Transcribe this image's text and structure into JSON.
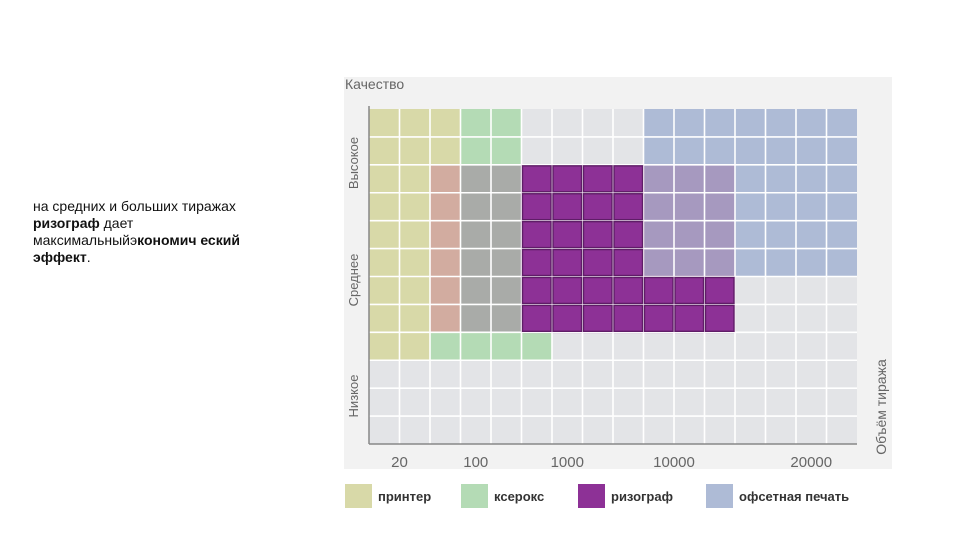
{
  "slide_text": {
    "part1": "на средних и больших тиражах ",
    "bold1": "ризограф",
    "part2": " дает максимальныйэ",
    "bold2": "кономич еский эффект",
    "part3": "."
  },
  "chart_data": {
    "type": "heatmap",
    "title": "Качество",
    "xlabel": "Объём тиража",
    "y_bands": [
      "Низкое",
      "Среднее",
      "Высокое"
    ],
    "x_ticks": [
      {
        "label": "20",
        "col": 1
      },
      {
        "label": "100",
        "col": 3.5
      },
      {
        "label": "1000",
        "col": 6.5
      },
      {
        "label": "10000",
        "col": 10
      },
      {
        "label": "20000",
        "col": 14.5
      }
    ],
    "grid": {
      "cols": 16,
      "rows": 12
    },
    "colors": {
      "grid_bg": "#e3e4e7",
      "grid_line": "#ffffff",
      "axis": "#888888",
      "printer": "#d8d9a8",
      "copier": "#b4dbb5",
      "riso": "#8d3196",
      "riso_border": "#5f1d67",
      "offset": "#aebbd6",
      "offset_dark": "#a699bf",
      "copier_gray": "#a9aba8",
      "blend": "#d2aca0"
    },
    "regions": [
      {
        "method": "printer",
        "color_key": "printer",
        "cells": [
          [
            0,
            0
          ],
          [
            0,
            1
          ],
          [
            0,
            2
          ],
          [
            0,
            3
          ],
          [
            0,
            4
          ],
          [
            0,
            5
          ],
          [
            0,
            6
          ],
          [
            0,
            7
          ],
          [
            0,
            8
          ],
          [
            1,
            0
          ],
          [
            1,
            1
          ],
          [
            1,
            2
          ],
          [
            1,
            3
          ],
          [
            1,
            4
          ],
          [
            1,
            5
          ],
          [
            1,
            6
          ],
          [
            1,
            7
          ],
          [
            1,
            8
          ],
          [
            2,
            0
          ],
          [
            2,
            1
          ]
        ]
      },
      {
        "method": "ксерокс",
        "color_key": "copier",
        "cells": [
          [
            2,
            8
          ],
          [
            3,
            0
          ],
          [
            3,
            1
          ],
          [
            3,
            8
          ],
          [
            4,
            0
          ],
          [
            4,
            1
          ],
          [
            4,
            8
          ],
          [
            5,
            8
          ]
        ]
      },
      {
        "method": "ксерокс",
        "color_key": "copier_gray",
        "cells": [
          [
            3,
            2
          ],
          [
            3,
            3
          ],
          [
            3,
            4
          ],
          [
            3,
            5
          ],
          [
            3,
            6
          ],
          [
            3,
            7
          ],
          [
            4,
            2
          ],
          [
            4,
            3
          ],
          [
            4,
            4
          ],
          [
            4,
            5
          ],
          [
            4,
            6
          ],
          [
            4,
            7
          ]
        ]
      },
      {
        "method": "blend",
        "color_key": "blend",
        "cells": [
          [
            2,
            2
          ],
          [
            2,
            3
          ],
          [
            2,
            4
          ],
          [
            2,
            5
          ],
          [
            2,
            6
          ],
          [
            2,
            7
          ]
        ]
      },
      {
        "method": "офсетная печать",
        "color_key": "offset",
        "cells": [
          [
            9,
            0
          ],
          [
            9,
            1
          ],
          [
            10,
            0
          ],
          [
            10,
            1
          ],
          [
            11,
            0
          ],
          [
            11,
            1
          ],
          [
            12,
            0
          ],
          [
            12,
            1
          ],
          [
            12,
            2
          ],
          [
            12,
            3
          ],
          [
            12,
            4
          ],
          [
            12,
            5
          ],
          [
            13,
            0
          ],
          [
            13,
            1
          ],
          [
            13,
            2
          ],
          [
            13,
            3
          ],
          [
            13,
            4
          ],
          [
            13,
            5
          ],
          [
            14,
            0
          ],
          [
            14,
            1
          ],
          [
            14,
            2
          ],
          [
            14,
            3
          ],
          [
            14,
            4
          ],
          [
            14,
            5
          ],
          [
            15,
            0
          ],
          [
            15,
            1
          ],
          [
            15,
            2
          ],
          [
            15,
            3
          ],
          [
            15,
            4
          ],
          [
            15,
            5
          ]
        ]
      },
      {
        "method": "офсетная печать",
        "color_key": "offset_dark",
        "cells": [
          [
            9,
            2
          ],
          [
            9,
            3
          ],
          [
            9,
            4
          ],
          [
            9,
            5
          ],
          [
            10,
            2
          ],
          [
            10,
            3
          ],
          [
            10,
            4
          ],
          [
            10,
            5
          ],
          [
            11,
            2
          ],
          [
            11,
            3
          ],
          [
            11,
            4
          ],
          [
            11,
            5
          ]
        ]
      },
      {
        "method": "ризограф",
        "color_key": "riso",
        "cells": [
          [
            5,
            2
          ],
          [
            5,
            3
          ],
          [
            5,
            4
          ],
          [
            5,
            5
          ],
          [
            5,
            6
          ],
          [
            5,
            7
          ],
          [
            6,
            2
          ],
          [
            6,
            3
          ],
          [
            6,
            4
          ],
          [
            6,
            5
          ],
          [
            6,
            6
          ],
          [
            6,
            7
          ],
          [
            7,
            2
          ],
          [
            7,
            3
          ],
          [
            7,
            4
          ],
          [
            7,
            5
          ],
          [
            7,
            6
          ],
          [
            7,
            7
          ],
          [
            8,
            2
          ],
          [
            8,
            3
          ],
          [
            8,
            4
          ],
          [
            8,
            5
          ],
          [
            8,
            6
          ],
          [
            8,
            7
          ],
          [
            9,
            6
          ],
          [
            9,
            7
          ],
          [
            10,
            6
          ],
          [
            10,
            7
          ],
          [
            11,
            6
          ],
          [
            11,
            7
          ]
        ]
      }
    ],
    "legend": [
      {
        "label": "принтер",
        "color": "#d8d9a8"
      },
      {
        "label": "ксерокс",
        "color": "#b4dbb5"
      },
      {
        "label": "ризограф",
        "color": "#8d3196"
      },
      {
        "label": "офсетная печать",
        "color": "#aebbd6"
      }
    ]
  }
}
